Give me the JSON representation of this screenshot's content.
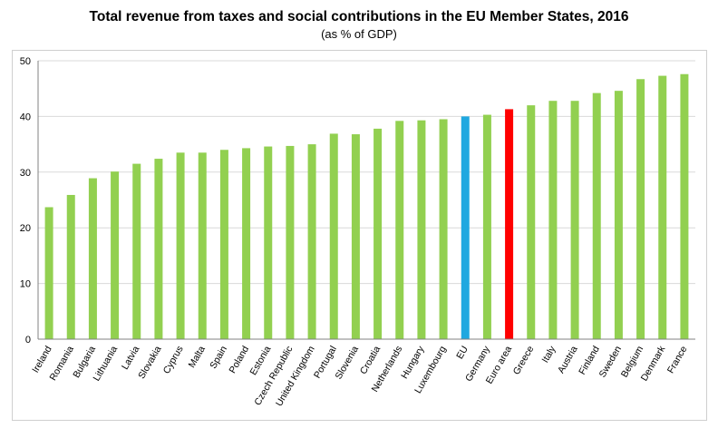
{
  "chart_data": {
    "type": "bar",
    "title": "Total revenue from taxes and social contributions in the EU Member States, 2016",
    "subtitle": "(as % of GDP)",
    "xlabel": "",
    "ylabel": "",
    "ylim": [
      0,
      50
    ],
    "yticks": [
      0,
      10,
      20,
      30,
      40,
      50
    ],
    "grid": true,
    "categories": [
      "Ireland",
      "Romania",
      "Bulgaria",
      "Lithuania",
      "Latvia",
      "Slovakia",
      "Cyprus",
      "Malta",
      "Spain",
      "Poland",
      "Estonia",
      "Czech Republic",
      "United Kingdom",
      "Portugal",
      "Slovenia",
      "Croatia",
      "Netherlands",
      "Hungary",
      "Luxembourg",
      "EU",
      "Germany",
      "Euro area",
      "Greece",
      "Italy",
      "Austria",
      "Finland",
      "Sweden",
      "Belgium",
      "Denmark",
      "France"
    ],
    "values": [
      23.7,
      25.9,
      28.9,
      30.1,
      31.5,
      32.4,
      33.5,
      33.5,
      34.0,
      34.3,
      34.6,
      34.7,
      35.0,
      36.9,
      36.8,
      37.8,
      39.2,
      39.3,
      39.5,
      40.0,
      40.3,
      41.3,
      42.0,
      42.8,
      42.8,
      44.2,
      44.6,
      46.7,
      47.3,
      47.6
    ],
    "colors": {
      "default": "#92d050",
      "EU": "#1fa8e0",
      "Euro area": "#ff0000",
      "grid": "#d9d9d9",
      "axis": "#808080"
    }
  }
}
